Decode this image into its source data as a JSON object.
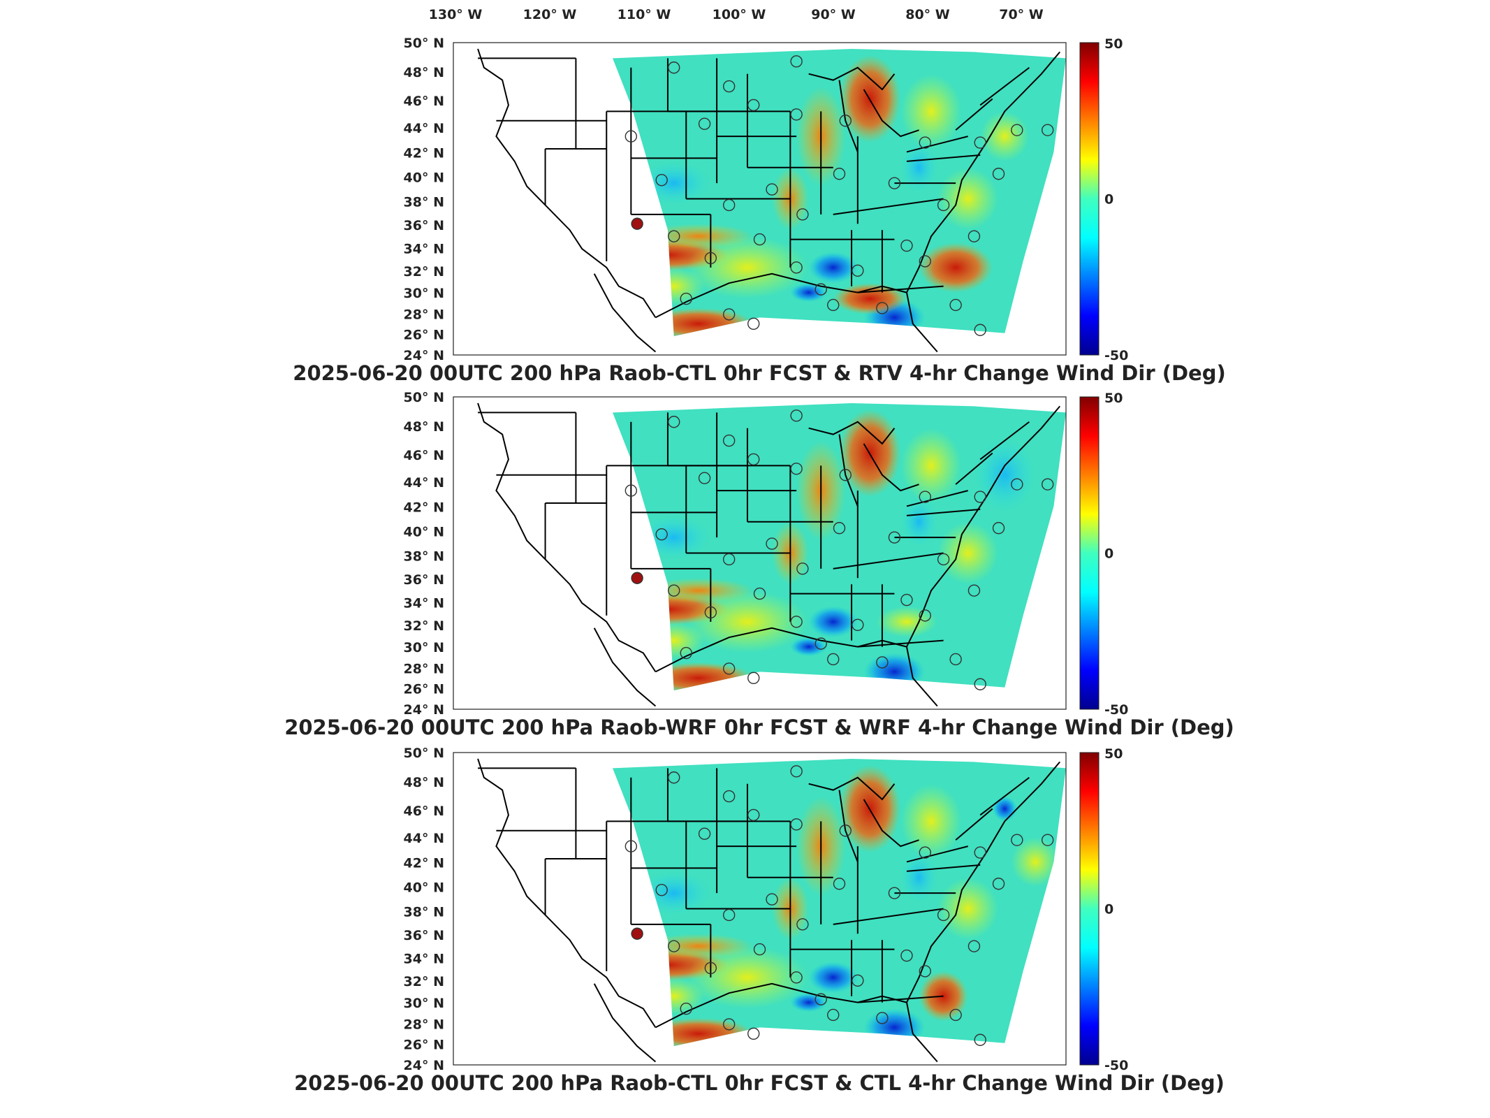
{
  "longitude_labels": [
    "130° W",
    "120° W",
    "110° W",
    "100° W",
    "90° W",
    "80° W",
    "70° W"
  ],
  "latitude_labels": [
    "50° N",
    "48° N",
    "46° N",
    "44° N",
    "42° N",
    "40° N",
    "38° N",
    "36° N",
    "34° N",
    "32° N",
    "30° N",
    "28° N",
    "26° N",
    "24° N"
  ],
  "colorbar": {
    "max_label": "50",
    "mid_label": "0",
    "min_label": "-50",
    "colormap": "jet"
  },
  "panels": [
    {
      "title": "2025-06-20 00UTC 200 hPa Raob-CTL 0hr FCST & RTV 4-hr Change Wind Dir (Deg)"
    },
    {
      "title": "2025-06-20 00UTC 200 hPa Raob-WRF 0hr FCST & WRF 4-hr Change Wind Dir (Deg)"
    },
    {
      "title": "2025-06-20 00UTC 200 hPa Raob-CTL 0hr FCST & CTL 4-hr Change Wind Dir (Deg)"
    }
  ],
  "colors": {
    "background": "#ffffff",
    "domain_base": "#40e0c0",
    "map_lines": "#000000"
  }
}
